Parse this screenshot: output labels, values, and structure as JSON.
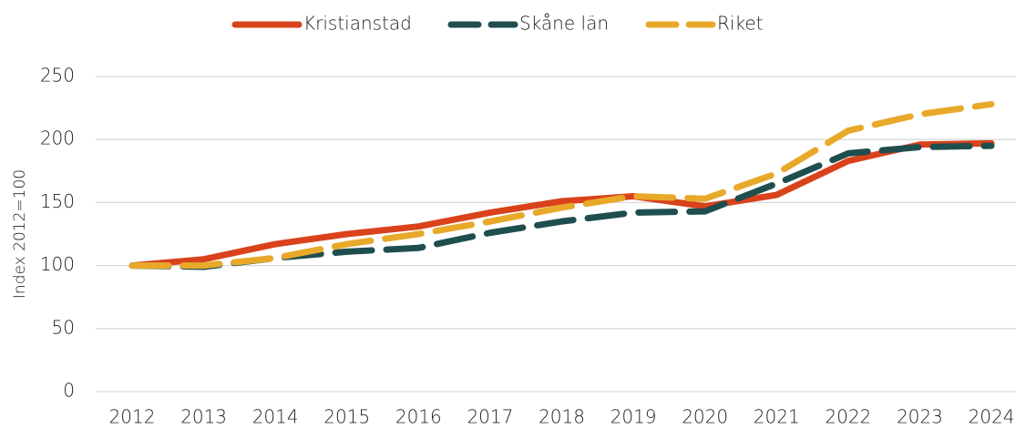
{
  "chart_data": {
    "type": "line",
    "y_label": "Index 2012=100",
    "x": [
      "2012",
      "2013",
      "2014",
      "2015",
      "2016",
      "2017",
      "2018",
      "2019",
      "2020",
      "2021",
      "2022",
      "2023",
      "2024"
    ],
    "series": [
      {
        "name": "Kristianstad",
        "color": "#d9421b",
        "style": "solid",
        "values": [
          100,
          105,
          117,
          125,
          131,
          142,
          151,
          155,
          147,
          156,
          183,
          196,
          197
        ]
      },
      {
        "name": "Skåne län",
        "color": "#1f4e4f",
        "style": "dashed",
        "values": [
          100,
          99,
          106,
          111,
          114,
          126,
          135,
          142,
          143,
          165,
          189,
          194,
          195
        ]
      },
      {
        "name": "Riket",
        "color": "#e8a92a",
        "style": "dashed",
        "values": [
          100,
          100,
          106,
          117,
          125,
          135,
          146,
          155,
          153,
          173,
          207,
          220,
          228
        ]
      }
    ],
    "ylim": [
      0,
      250
    ],
    "yticks": [
      0,
      50,
      100,
      150,
      200,
      250
    ],
    "grid": true,
    "legend": "top"
  }
}
